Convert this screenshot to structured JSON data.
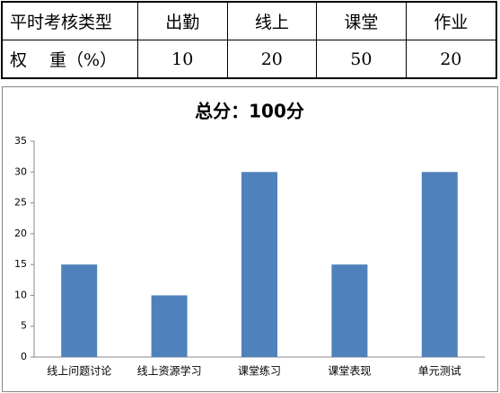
{
  "table": {
    "rows": [
      [
        "平时考核类型",
        "出勤",
        "线上",
        "课堂",
        "作业"
      ],
      [
        "权　 重（%）",
        "10",
        "20",
        "50",
        "20"
      ]
    ]
  },
  "chart_data": {
    "type": "bar",
    "title": "总分：100分",
    "categories": [
      "线上问题讨论",
      "线上资源学习",
      "课堂练习",
      "课堂表现",
      "单元测试"
    ],
    "values": [
      15,
      10,
      30,
      15,
      30
    ],
    "color": "#4f81bd",
    "ylim": [
      0,
      35
    ],
    "yticks": [
      0,
      5,
      10,
      15,
      20,
      25,
      30,
      35
    ],
    "grid": false
  }
}
